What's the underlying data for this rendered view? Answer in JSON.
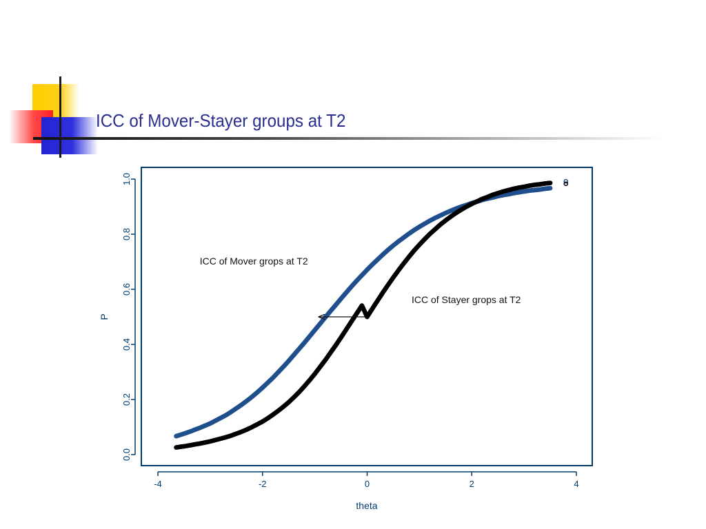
{
  "slide": {
    "title": "ICC of Mover-Stayer groups at T2"
  },
  "colors": {
    "title": "#2a2f8f",
    "axis": "#003a6b",
    "mover": "#1f4f8c",
    "stayer": "#000000"
  },
  "chart_data": {
    "type": "scatter",
    "title": "",
    "xlabel": "theta",
    "ylabel": "P",
    "xlim": [
      -4,
      4
    ],
    "ylim": [
      0,
      1
    ],
    "x_ticks": [
      -4,
      -2,
      0,
      2,
      4
    ],
    "y_ticks": [
      0.0,
      0.2,
      0.4,
      0.6,
      0.8,
      1.0
    ],
    "x_tick_labels": [
      "-4",
      "-2",
      "0",
      "2",
      "4"
    ],
    "y_tick_labels": [
      "0.0",
      "0.2",
      "0.4",
      "0.6",
      "0.8",
      "1.0"
    ],
    "grid": false,
    "series": [
      {
        "key": "mover",
        "color": "#1f4f8c",
        "x": [
          -3.65,
          -3.55,
          -3.5,
          -3.35,
          -3.3,
          -3.2,
          -3.1,
          -3.0,
          -2.9,
          -2.8,
          -2.7,
          -2.6,
          -2.5,
          -2.4,
          -2.3,
          -2.2,
          -2.1,
          -2.0,
          -1.9,
          -1.8,
          -1.7,
          -1.6,
          -1.5,
          -1.4,
          -1.3,
          -1.2,
          -1.1,
          -1.0,
          -0.9,
          -0.8,
          -0.7,
          -0.6,
          -0.5,
          -0.4,
          -0.3,
          -0.2,
          -0.1,
          0.0,
          0.1,
          0.2,
          0.3,
          0.4,
          0.5,
          0.6,
          0.7,
          0.8,
          0.9,
          1.0,
          1.1,
          1.2,
          1.3,
          1.4,
          1.5,
          1.6,
          1.7,
          1.8,
          1.9,
          2.0,
          2.1,
          2.2,
          2.3,
          2.4,
          2.5,
          2.6,
          2.7,
          2.8,
          2.9,
          3.0,
          3.1,
          3.2,
          3.3,
          3.4,
          3.5,
          3.8
        ],
        "y": [
          0.067,
          0.073,
          0.076,
          0.086,
          0.09,
          0.097,
          0.105,
          0.113,
          0.123,
          0.133,
          0.143,
          0.155,
          0.168,
          0.181,
          0.195,
          0.21,
          0.226,
          0.243,
          0.261,
          0.279,
          0.299,
          0.319,
          0.34,
          0.362,
          0.384,
          0.406,
          0.429,
          0.452,
          0.475,
          0.498,
          0.521,
          0.543,
          0.566,
          0.588,
          0.61,
          0.631,
          0.651,
          0.671,
          0.69,
          0.708,
          0.726,
          0.743,
          0.759,
          0.774,
          0.788,
          0.802,
          0.815,
          0.827,
          0.838,
          0.849,
          0.859,
          0.868,
          0.877,
          0.885,
          0.893,
          0.9,
          0.906,
          0.913,
          0.918,
          0.924,
          0.929,
          0.933,
          0.938,
          0.942,
          0.945,
          0.949,
          0.952,
          0.955,
          0.958,
          0.96,
          0.962,
          0.965,
          0.967,
          0.992
        ]
      },
      {
        "key": "stayer",
        "color": "#000000",
        "x": [
          -3.65,
          -3.55,
          -3.5,
          -3.35,
          -3.3,
          -3.2,
          -3.1,
          -3.0,
          -2.9,
          -2.8,
          -2.7,
          -2.6,
          -2.5,
          -2.4,
          -2.3,
          -2.2,
          -2.1,
          -2.0,
          -1.9,
          -1.8,
          -1.7,
          -1.6,
          -1.5,
          -1.4,
          -1.3,
          -1.2,
          -1.1,
          -1.0,
          -0.9,
          -0.8,
          -0.7,
          -0.6,
          -0.5,
          -0.4,
          -0.3,
          -0.2,
          -0.1,
          0.0,
          0.1,
          0.2,
          0.3,
          0.4,
          0.5,
          0.6,
          0.7,
          0.8,
          0.9,
          1.0,
          1.1,
          1.2,
          1.3,
          1.4,
          1.5,
          1.6,
          1.7,
          1.8,
          1.9,
          2.0,
          2.1,
          2.2,
          2.3,
          2.4,
          2.5,
          2.6,
          2.7,
          2.8,
          2.9,
          3.0,
          3.1,
          3.2,
          3.3,
          3.4,
          3.5,
          3.8
        ],
        "y": [
          0.026,
          0.029,
          0.03,
          0.035,
          0.037,
          0.04,
          0.044,
          0.048,
          0.053,
          0.058,
          0.063,
          0.069,
          0.076,
          0.083,
          0.091,
          0.1,
          0.11,
          0.12,
          0.132,
          0.145,
          0.159,
          0.174,
          0.19,
          0.208,
          0.227,
          0.248,
          0.27,
          0.293,
          0.318,
          0.343,
          0.37,
          0.397,
          0.425,
          0.454,
          0.483,
          0.512,
          0.541,
          0.5,
          0.53,
          0.559,
          0.588,
          0.616,
          0.643,
          0.669,
          0.694,
          0.718,
          0.741,
          0.762,
          0.782,
          0.801,
          0.818,
          0.835,
          0.85,
          0.864,
          0.877,
          0.889,
          0.9,
          0.91,
          0.919,
          0.928,
          0.935,
          0.943,
          0.949,
          0.955,
          0.96,
          0.965,
          0.969,
          0.972,
          0.976,
          0.979,
          0.981,
          0.984,
          0.986,
          0.983
        ]
      }
    ],
    "annotations": [
      {
        "key": "mover-label",
        "text": "ICC of Mover grops at T2",
        "x": -3.2,
        "y": 0.69
      },
      {
        "key": "stayer-label",
        "text": "ICC of Stayer grops at T2",
        "x": 0.85,
        "y": 0.55
      }
    ],
    "arrow": {
      "from": [
        0.0,
        0.5
      ],
      "to": [
        -0.92,
        0.5
      ]
    }
  }
}
